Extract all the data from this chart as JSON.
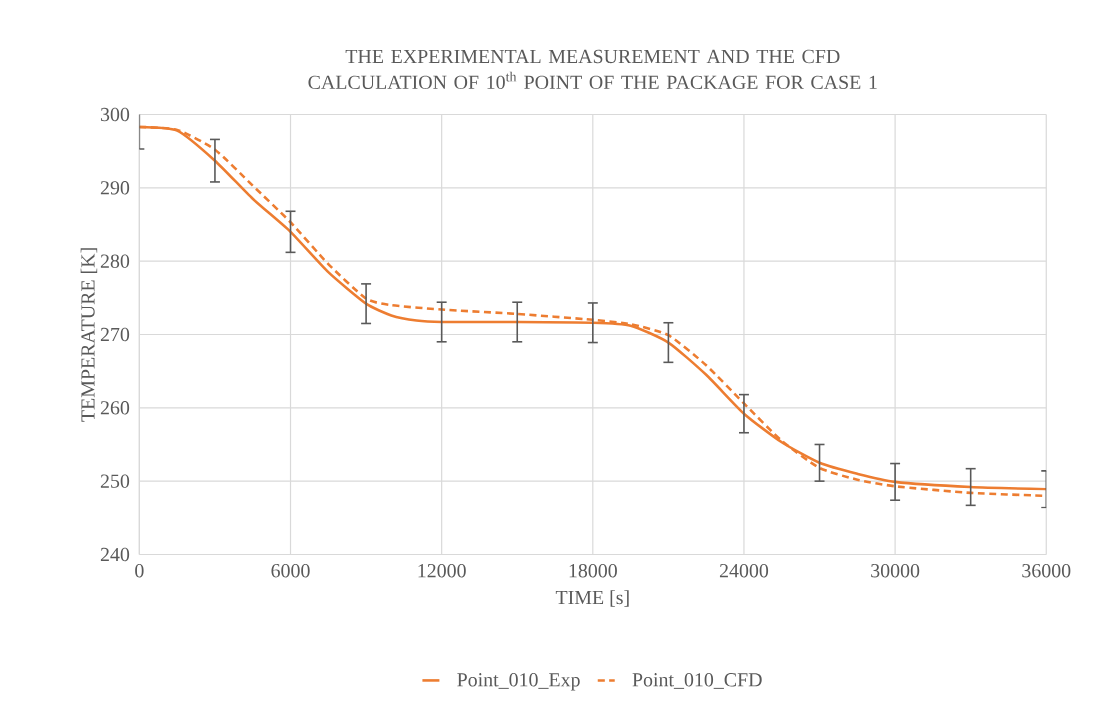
{
  "chart_data": {
    "type": "line",
    "title": "THE EXPERIMENTAL  MEASUREMENT AND THE CFD CALCULATION  OF 10$^{th}$ POINT OF THE PACKAGE FOR CASE  1",
    "xlabel": "TIME [s]",
    "ylabel": "TEMPERATURE [K]",
    "xlim": [
      0,
      36000
    ],
    "xticks": [
      0,
      6000,
      12000,
      18000,
      24000,
      30000,
      36000
    ],
    "ylim": [
      240,
      300
    ],
    "yticks": [
      240,
      250,
      260,
      270,
      280,
      290,
      300
    ],
    "grid": true,
    "legend": "bottom",
    "marker": "none",
    "series": [
      {
        "name": "Point_010_Exp",
        "color": "#ed7d31",
        "line_style": "solid",
        "x": [
          0,
          1500,
          3000,
          4500,
          6000,
          7500,
          9000,
          10000,
          11000,
          12000,
          15000,
          18000,
          19500,
          21000,
          22500,
          24000,
          25500,
          27000,
          28500,
          30000,
          33000,
          36000
        ],
        "values": [
          298.3,
          297.8,
          293.7,
          288.5,
          284.0,
          278.5,
          274.2,
          272.6,
          271.9,
          271.7,
          271.7,
          271.6,
          271.2,
          268.9,
          264.5,
          259.2,
          255.3,
          252.5,
          251.0,
          249.9,
          249.2,
          248.9
        ],
        "errors": [
          3.0,
          null,
          2.9,
          null,
          2.8,
          null,
          2.7,
          null,
          null,
          2.7,
          2.7,
          2.7,
          null,
          2.7,
          null,
          2.6,
          null,
          2.5,
          null,
          2.5,
          2.5,
          2.5
        ]
      },
      {
        "name": "Point_010_CFD",
        "color": "#ed7d31",
        "line_style": "dashed",
        "x": [
          0,
          1500,
          3000,
          4500,
          6000,
          7500,
          9000,
          10000,
          12000,
          15000,
          18000,
          19500,
          21000,
          22500,
          24000,
          25500,
          27000,
          28500,
          30000,
          33000,
          36000
        ],
        "values": [
          298.3,
          297.9,
          295.2,
          290.3,
          285.3,
          279.6,
          274.9,
          274.0,
          273.4,
          272.8,
          272.0,
          271.4,
          269.9,
          265.8,
          260.6,
          255.5,
          251.8,
          250.2,
          249.3,
          248.4,
          248.0
        ]
      }
    ]
  }
}
